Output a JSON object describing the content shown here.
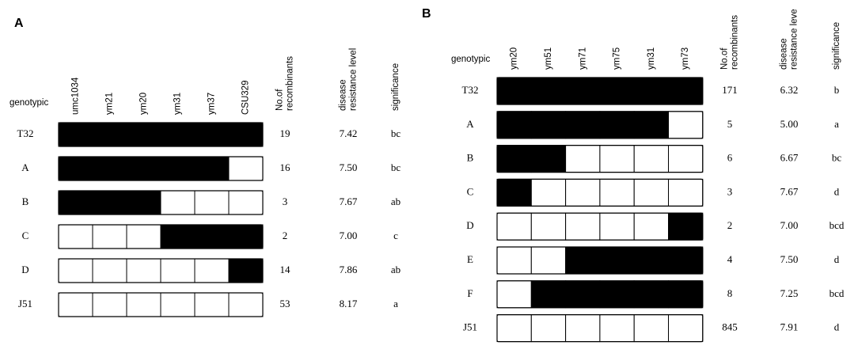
{
  "panels": [
    {
      "label": "A",
      "row_header": "genotypic",
      "markers": [
        "umc1034",
        "ym21",
        "ym20",
        "ym31",
        "ym37",
        "CSU329"
      ],
      "columns": [
        [
          "No.of",
          "recombinants"
        ],
        [
          "disease",
          "resistance level"
        ],
        [
          "significance"
        ]
      ],
      "rows": [
        {
          "name": "T32",
          "genotype": [
            1,
            1,
            1,
            1,
            1,
            1
          ],
          "recombinants": "19",
          "level": "7.42",
          "significance": "bc"
        },
        {
          "name": "A",
          "genotype": [
            1,
            1,
            1,
            1,
            1,
            0
          ],
          "recombinants": "16",
          "level": "7.50",
          "significance": "bc"
        },
        {
          "name": "B",
          "genotype": [
            1,
            1,
            1,
            0,
            0,
            0
          ],
          "recombinants": "3",
          "level": "7.67",
          "significance": "ab"
        },
        {
          "name": "C",
          "genotype": [
            0,
            0,
            0,
            1,
            1,
            1
          ],
          "recombinants": "2",
          "level": "7.00",
          "significance": "c"
        },
        {
          "name": "D",
          "genotype": [
            0,
            0,
            0,
            0,
            0,
            1
          ],
          "recombinants": "14",
          "level": "7.86",
          "significance": "ab"
        },
        {
          "name": "J51",
          "genotype": [
            0,
            0,
            0,
            0,
            0,
            0
          ],
          "recombinants": "53",
          "level": "8.17",
          "significance": "a"
        }
      ]
    },
    {
      "label": "B",
      "row_header": "genotypic",
      "markers": [
        "ym20",
        "ym51",
        "ym71",
        "ym75",
        "ym31",
        "ym73"
      ],
      "columns": [
        [
          "No.of",
          "recombinants"
        ],
        [
          "disease",
          "resistance leve"
        ],
        [
          "significance"
        ]
      ],
      "rows": [
        {
          "name": "T32",
          "genotype": [
            1,
            1,
            1,
            1,
            1,
            1
          ],
          "recombinants": "171",
          "level": "6.32",
          "significance": "b"
        },
        {
          "name": "A",
          "genotype": [
            1,
            1,
            1,
            1,
            1,
            0
          ],
          "recombinants": "5",
          "level": "5.00",
          "significance": "a"
        },
        {
          "name": "B",
          "genotype": [
            1,
            1,
            0,
            0,
            0,
            0
          ],
          "recombinants": "6",
          "level": "6.67",
          "significance": "bc"
        },
        {
          "name": "C",
          "genotype": [
            1,
            0,
            0,
            0,
            0,
            0
          ],
          "recombinants": "3",
          "level": "7.67",
          "significance": "d"
        },
        {
          "name": "D",
          "genotype": [
            0,
            0,
            0,
            0,
            0,
            1
          ],
          "recombinants": "2",
          "level": "7.00",
          "significance": "bcd"
        },
        {
          "name": "E",
          "genotype": [
            0,
            0,
            1,
            1,
            1,
            1
          ],
          "recombinants": "4",
          "level": "7.50",
          "significance": "d"
        },
        {
          "name": "F",
          "genotype": [
            0,
            1,
            1,
            1,
            1,
            1
          ],
          "recombinants": "8",
          "level": "7.25",
          "significance": "bcd"
        },
        {
          "name": "J51",
          "genotype": [
            0,
            0,
            0,
            0,
            0,
            0
          ],
          "recombinants": "845",
          "level": "7.91",
          "significance": "d"
        }
      ]
    }
  ]
}
